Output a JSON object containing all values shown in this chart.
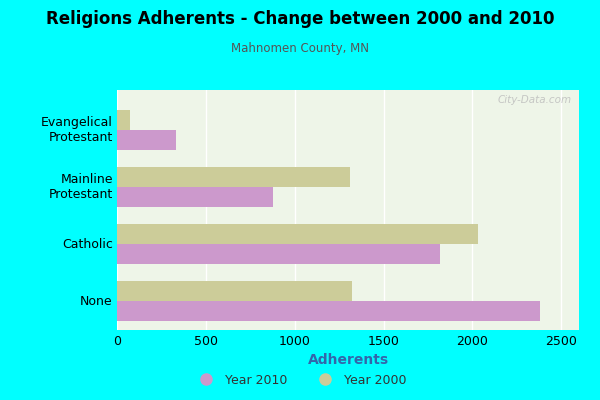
{
  "title": "Religions Adherents - Change between 2000 and 2010",
  "subtitle": "Mahnomen County, MN",
  "xlabel": "Adherents",
  "categories": [
    "Evangelical\nProtestant",
    "Mainline\nProtestant",
    "Catholic",
    "None"
  ],
  "year2010": [
    330,
    880,
    1820,
    2380
  ],
  "year2000": [
    75,
    1310,
    2030,
    1320
  ],
  "color2010": "#cc99cc",
  "color2000": "#cccc99",
  "xlim": [
    0,
    2600
  ],
  "xticks": [
    0,
    500,
    1000,
    1500,
    2000,
    2500
  ],
  "background_outer": "#00ffff",
  "background_inner_left": "#e8f5e8",
  "background_inner_right": "#f5f5e0",
  "bar_height": 0.35,
  "legend_label2010": "Year 2010",
  "legend_label2000": "Year 2000",
  "watermark": "City-Data.com"
}
